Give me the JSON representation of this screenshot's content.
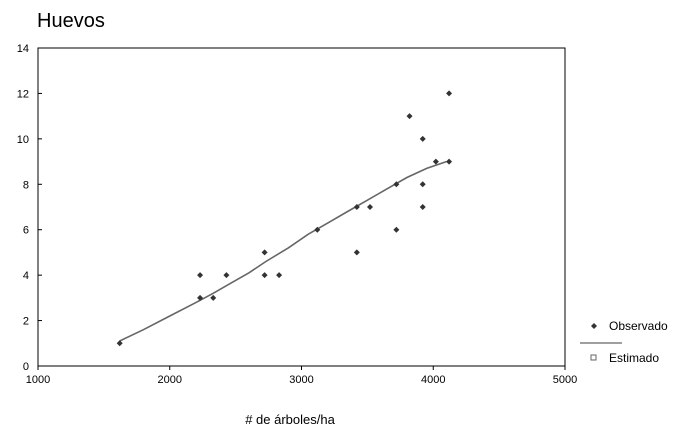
{
  "chart_data": {
    "type": "scatter",
    "title": "Huevos",
    "xlabel": "# de árboles/ha",
    "ylabel": "",
    "xlim": [
      1000,
      5000
    ],
    "ylim": [
      0,
      14
    ],
    "xticks": [
      "1000",
      "2000",
      "3000",
      "4000",
      "5000"
    ],
    "yticks": [
      "0",
      "2",
      "4",
      "6",
      "8",
      "10",
      "12",
      "14"
    ],
    "grid": false,
    "legend_position": "right",
    "series": [
      {
        "name": "Observado",
        "kind": "points",
        "marker": "diamond",
        "color": "#333333",
        "points": [
          [
            1620,
            1
          ],
          [
            2230,
            4
          ],
          [
            2230,
            3
          ],
          [
            2330,
            3
          ],
          [
            2430,
            4
          ],
          [
            2720,
            5
          ],
          [
            2720,
            4
          ],
          [
            2830,
            4
          ],
          [
            3120,
            6
          ],
          [
            3420,
            7
          ],
          [
            3420,
            5
          ],
          [
            3520,
            7
          ],
          [
            3720,
            8
          ],
          [
            3720,
            6
          ],
          [
            3820,
            11
          ],
          [
            3920,
            10
          ],
          [
            3920,
            8
          ],
          [
            3920,
            7
          ],
          [
            4020,
            9
          ],
          [
            4120,
            12
          ],
          [
            4120,
            9
          ]
        ]
      },
      {
        "name": "Estimado",
        "kind": "line",
        "marker": "square",
        "color": "#666666",
        "points": [
          [
            1620,
            1.1
          ],
          [
            1800,
            1.6
          ],
          [
            2000,
            2.2
          ],
          [
            2200,
            2.8
          ],
          [
            2330,
            3.2
          ],
          [
            2450,
            3.6
          ],
          [
            2600,
            4.1
          ],
          [
            2730,
            4.6
          ],
          [
            2900,
            5.2
          ],
          [
            3050,
            5.8
          ],
          [
            3200,
            6.3
          ],
          [
            3350,
            6.8
          ],
          [
            3500,
            7.3
          ],
          [
            3650,
            7.8
          ],
          [
            3800,
            8.3
          ],
          [
            3950,
            8.7
          ],
          [
            4100,
            9.0
          ]
        ]
      }
    ]
  }
}
